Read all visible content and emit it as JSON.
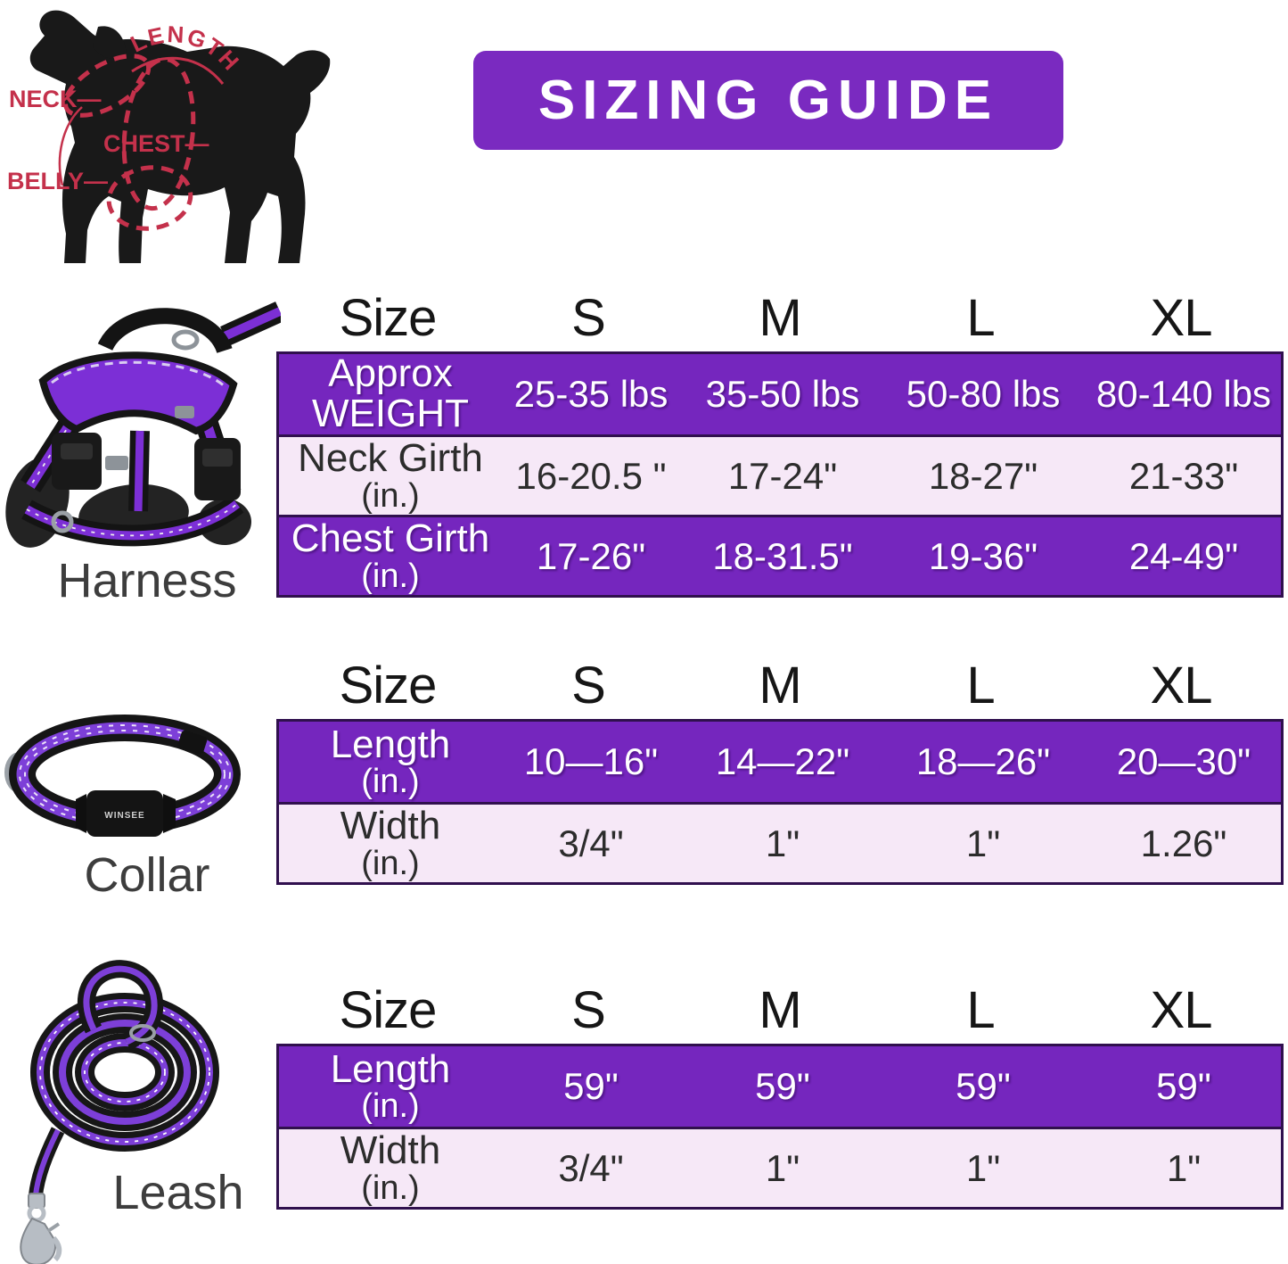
{
  "banner": {
    "title": "SIZING GUIDE"
  },
  "colors": {
    "banner_purple": "#7a2ac0",
    "row_purple": "#7526be",
    "row_light": "#f6e8f7",
    "row_border_dark": "#30104e",
    "diagram_red": "#c4314b",
    "product_purple": "#7c2fd6"
  },
  "diagram": {
    "length_label": "LENGTH",
    "neck_label": "NECK—",
    "chest_label": "CHEST—",
    "belly_label": "BELLY—"
  },
  "products": [
    {
      "label": "Harness"
    },
    {
      "label": "Collar",
      "brand": "WINSEE"
    },
    {
      "label": "Leash"
    }
  ],
  "tables": [
    {
      "id": "harness",
      "header": [
        "Size",
        "S",
        "M",
        "L",
        "XL"
      ],
      "rows": [
        {
          "style": "purple",
          "label_lines": [
            "Approx",
            "WEIGHT"
          ],
          "values": [
            "25-35 lbs",
            "35-50 lbs",
            "50-80 lbs",
            "80-140 lbs"
          ]
        },
        {
          "style": "light",
          "label_lines": [
            "Neck Girth",
            "(in.)"
          ],
          "values": [
            "16-20.5 \"",
            "17-24\"",
            "18-27\"",
            "21-33\""
          ]
        },
        {
          "style": "purple",
          "label_lines": [
            "Chest Girth",
            "(in.)"
          ],
          "values": [
            "17-26\"",
            "18-31.5\"",
            "19-36\"",
            "24-49\""
          ]
        }
      ]
    },
    {
      "id": "collar",
      "header": [
        "Size",
        "S",
        "M",
        "L",
        "XL"
      ],
      "rows": [
        {
          "style": "purple",
          "label_lines": [
            "Length",
            "(in.)"
          ],
          "values": [
            "10—16\"",
            "14—22\"",
            "18—26\"",
            "20—30\""
          ]
        },
        {
          "style": "light",
          "label_lines": [
            "Width",
            "(in.)"
          ],
          "values": [
            "3/4\"",
            "1\"",
            "1\"",
            "1.26\""
          ]
        }
      ]
    },
    {
      "id": "leash",
      "header": [
        "Size",
        "S",
        "M",
        "L",
        "XL"
      ],
      "rows": [
        {
          "style": "purple",
          "label_lines": [
            "Length",
            "(in.)"
          ],
          "values": [
            "59\"",
            "59\"",
            "59\"",
            "59\""
          ]
        },
        {
          "style": "light",
          "label_lines": [
            "Width",
            "(in.)"
          ],
          "values": [
            "3/4\"",
            "1\"",
            "1\"",
            "1\""
          ]
        }
      ]
    }
  ]
}
